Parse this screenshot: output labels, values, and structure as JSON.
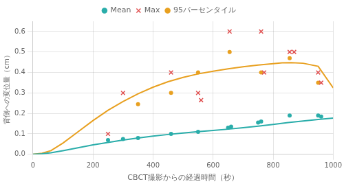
{
  "chart_data": {
    "type": "scatter",
    "xlabel": "CBCT撮影からの経過時間（秒）",
    "ylabel": "背側への変位量（cm）",
    "xlim": [
      0,
      1000
    ],
    "ylim": [
      0,
      0.65
    ],
    "xticks": [
      0,
      200,
      400,
      600,
      800,
      1000
    ],
    "yticks": [
      {
        "value": 0.0,
        "label": "0.0"
      },
      0.1,
      0.2,
      0.3,
      0.4,
      0.5,
      0.6
    ],
    "grid": true,
    "legend": "top",
    "series": [
      {
        "type": "line",
        "color": "#2aadaa",
        "x": [
          0,
          30,
          60,
          100,
          150,
          200,
          250,
          300,
          350,
          400,
          450,
          500,
          550,
          600,
          650,
          700,
          750,
          800,
          850,
          900,
          950,
          1000
        ],
        "values": [
          0.0,
          0.003,
          0.008,
          0.018,
          0.032,
          0.046,
          0.058,
          0.07,
          0.08,
          0.089,
          0.097,
          0.104,
          0.111,
          0.117,
          0.123,
          0.13,
          0.138,
          0.146,
          0.155,
          0.163,
          0.17,
          0.177
        ]
      },
      {
        "type": "line",
        "color": "#e8a020",
        "x": [
          0,
          30,
          60,
          100,
          150,
          200,
          250,
          300,
          350,
          400,
          450,
          500,
          550,
          600,
          650,
          700,
          750,
          800,
          830,
          860,
          900,
          950,
          1000
        ],
        "values": [
          0.0,
          0.005,
          0.018,
          0.055,
          0.11,
          0.165,
          0.215,
          0.258,
          0.296,
          0.328,
          0.355,
          0.376,
          0.393,
          0.406,
          0.418,
          0.428,
          0.436,
          0.443,
          0.447,
          0.448,
          0.445,
          0.43,
          0.325
        ]
      },
      {
        "name": "Mean",
        "type": "scatter",
        "color": "#2aadaa",
        "marker": "circle",
        "x": [
          250,
          300,
          350,
          460,
          550,
          650,
          660,
          750,
          760,
          855,
          950,
          960
        ],
        "values": [
          0.07,
          0.075,
          0.08,
          0.1,
          0.11,
          0.13,
          0.135,
          0.155,
          0.16,
          0.19,
          0.19,
          0.185
        ]
      },
      {
        "name": "Max",
        "type": "scatter",
        "color": "#e05050",
        "marker": "x",
        "x": [
          250,
          300,
          460,
          550,
          560,
          655,
          760,
          770,
          855,
          870,
          950,
          960
        ],
        "values": [
          0.1,
          0.3,
          0.4,
          0.3,
          0.265,
          0.6,
          0.6,
          0.4,
          0.5,
          0.5,
          0.4,
          0.35
        ]
      },
      {
        "name": "95パーセンタイル",
        "type": "scatter",
        "color": "#e8a020",
        "marker": "circle",
        "x": [
          350,
          460,
          550,
          655,
          760,
          855,
          950
        ],
        "values": [
          0.245,
          0.3,
          0.4,
          0.5,
          0.4,
          0.47,
          0.35
        ]
      }
    ]
  }
}
